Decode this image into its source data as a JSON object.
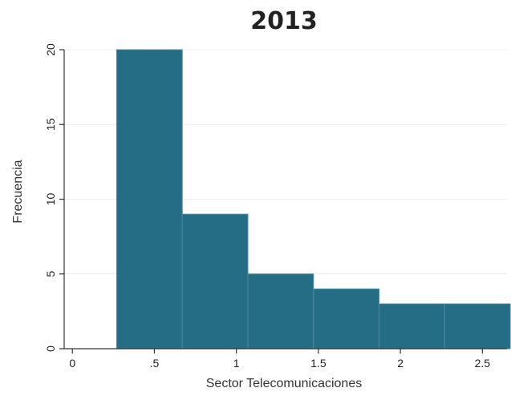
{
  "chart_data": {
    "type": "bar",
    "title": "2013",
    "xlabel": "Sector Telecomunicaciones",
    "ylabel": "Frecuencia",
    "xlim": [
      -0.05,
      2.65
    ],
    "ylim": [
      0,
      20
    ],
    "grid": true,
    "x_ticks": [
      {
        "value": 0,
        "label": "0"
      },
      {
        "value": 0.5,
        "label": ".5"
      },
      {
        "value": 1,
        "label": "1"
      },
      {
        "value": 1.5,
        "label": "1.5"
      },
      {
        "value": 2,
        "label": "2"
      },
      {
        "value": 2.5,
        "label": "2.5"
      }
    ],
    "y_ticks": [
      {
        "value": 0,
        "label": "0"
      },
      {
        "value": 5,
        "label": "5"
      },
      {
        "value": 10,
        "label": "10"
      },
      {
        "value": 15,
        "label": "15"
      },
      {
        "value": 20,
        "label": "20"
      }
    ],
    "bins": [
      {
        "start": 0.27,
        "end": 0.67,
        "count": 20
      },
      {
        "start": 0.67,
        "end": 1.07,
        "count": 9
      },
      {
        "start": 1.07,
        "end": 1.47,
        "count": 5
      },
      {
        "start": 1.47,
        "end": 1.87,
        "count": 4
      },
      {
        "start": 1.87,
        "end": 2.27,
        "count": 3
      },
      {
        "start": 2.27,
        "end": 2.67,
        "count": 3
      }
    ],
    "bar_color": "#256d85",
    "bar_edge_color": "#4b8aa3"
  }
}
